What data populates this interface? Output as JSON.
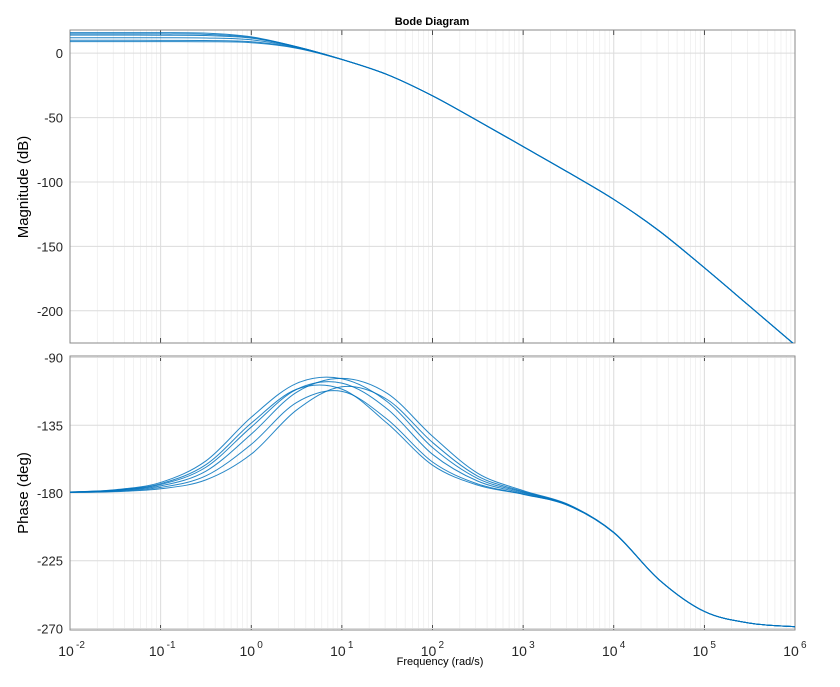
{
  "chart_data": {
    "type": "line",
    "title": "Bode Diagram",
    "xlabel": "Frequency  (rad/s)",
    "xscale": "log",
    "xlim": [
      0.01,
      1000000
    ],
    "xtick_base": "10",
    "xtick_exponents": [
      "-2",
      "-1",
      "0",
      "1",
      "2",
      "3",
      "4",
      "5",
      "6"
    ],
    "grid": true,
    "line_color": "#0072BD",
    "x": [
      0.01,
      0.0316,
      0.1,
      0.316,
      1,
      3.16,
      10,
      31.6,
      100,
      316,
      1000,
      3162,
      10000,
      31623,
      100000,
      316228,
      1000000
    ],
    "subplots": [
      {
        "ylabel": "Magnitude (dB)",
        "ylim": [
          -225,
          18
        ],
        "yticks": [
          0,
          -50,
          -100,
          -150,
          -200
        ],
        "ytick_labels": [
          "0",
          "-50",
          "-100",
          "-150",
          "-200"
        ],
        "series": [
          {
            "values": [
              16,
              16,
              15.95,
              15.54,
              12.71,
              5.07,
              -4.86,
              -16.6,
              -33.1,
              -52.5,
              -72.5,
              -92.6,
              -113.5,
              -137.9,
              -166.6,
              -196.5,
              -226.5
            ]
          },
          {
            "values": [
              14,
              14,
              13.97,
              13.7,
              11.68,
              4.91,
              -4.81,
              -16.6,
              -33.1,
              -52.5,
              -72.5,
              -92.6,
              -113.5,
              -137.9,
              -166.6,
              -196.5,
              -226.5
            ]
          },
          {
            "values": [
              12,
              12,
              11.99,
              11.81,
              10.4,
              4.61,
              -4.83,
              -16.6,
              -33.1,
              -52.5,
              -72.5,
              -92.6,
              -113.5,
              -137.9,
              -166.6,
              -196.5,
              -226.5
            ]
          },
          {
            "values": [
              10,
              10,
              9.99,
              9.88,
              8.92,
              4.14,
              -4.93,
              -16.6,
              -33.1,
              -52.5,
              -72.5,
              -92.6,
              -113.5,
              -137.9,
              -166.6,
              -196.5,
              -226.5
            ]
          },
          {
            "values": [
              9,
              9,
              8.99,
              8.9,
              8.12,
              3.86,
              -4.96,
              -16.6,
              -33.1,
              -52.5,
              -72.5,
              -92.6,
              -113.5,
              -137.9,
              -166.6,
              -196.5,
              -226.5
            ]
          },
          {
            "values": [
              15,
              15,
              14.96,
              14.63,
              12.24,
              5.02,
              -4.8,
              -16.6,
              -33.1,
              -52.5,
              -72.5,
              -92.6,
              -113.5,
              -137.9,
              -166.6,
              -196.5,
              -226.5
            ]
          }
        ]
      },
      {
        "ylabel": "Phase (deg)",
        "ylim": [
          -271,
          -89
        ],
        "yticks": [
          -90,
          -135,
          -180,
          -225,
          -270
        ],
        "ytick_labels": [
          "-90",
          "-135",
          "-180",
          "-225",
          "-270"
        ],
        "series": [
          {
            "values": [
              -179.3,
              -177.8,
              -173.0,
              -158.7,
              -129.7,
              -107.2,
              -104.1,
              -119.3,
              -149.8,
              -170.4,
              -179.5,
              -187.9,
              -206.2,
              -237.6,
              -258.7,
              -266.4,
              -268.85
            ]
          },
          {
            "values": [
              -179.4,
              -178.2,
              -174.4,
              -162.9,
              -136.2,
              -111.2,
              -107.0,
              -124.1,
              -154.3,
              -172.1,
              -180.1,
              -188.1,
              -206.3,
              -237.6,
              -258.7,
              -266.4,
              -268.85
            ]
          },
          {
            "values": [
              -179.5,
              -178.5,
              -175.3,
              -165.5,
              -140.9,
              -113.1,
              -103.9,
              -113.8,
              -142.3,
              -166.9,
              -178.4,
              -187.6,
              -206.1,
              -237.6,
              -258.7,
              -266.4,
              -268.85
            ]
          },
          {
            "values": [
              -179.6,
              -178.8,
              -176.3,
              -168.6,
              -147.7,
              -119.9,
              -112.5,
              -131.0,
              -159.4,
              -174.0,
              -180.7,
              -188.3,
              -206.3,
              -237.6,
              -258.7,
              -266.4,
              -268.85
            ]
          },
          {
            "values": [
              -179.4,
              -178.0,
              -173.8,
              -161.2,
              -133.6,
              -111.1,
              -111.0,
              -133.7,
              -161.5,
              -174.8,
              -180.9,
              -188.4,
              -206.4,
              -237.6,
              -258.7,
              -266.4,
              -268.85
            ]
          },
          {
            "values": [
              -179.7,
              -179.1,
              -177.2,
              -171.3,
              -154.2,
              -124.9,
              -109.4,
              -117.9,
              -146.4,
              -168.8,
              -179.0,
              -187.8,
              -206.2,
              -237.6,
              -258.7,
              -266.4,
              -268.85
            ]
          }
        ]
      }
    ]
  }
}
